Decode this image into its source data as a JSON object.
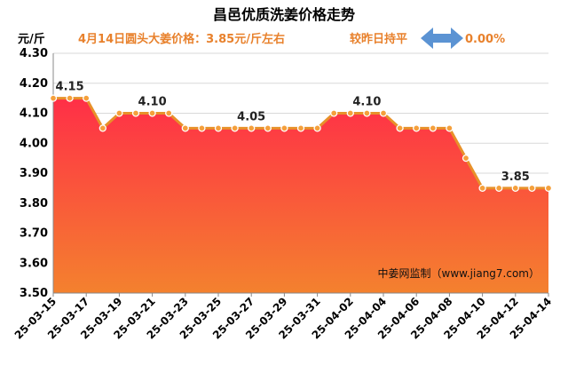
{
  "chart_data": {
    "type": "area",
    "title": "昌邑优质洗姜价格走势",
    "subtitle": "4月14日圆头大姜价格：3.85元/斤左右",
    "change_text": "较昨日持平",
    "change_pct": "0.00%",
    "ylabel": "元/斤",
    "ylim": [
      3.5,
      4.3
    ],
    "y_ticks": [
      "3.50",
      "3.60",
      "3.70",
      "3.80",
      "3.90",
      "4.00",
      "4.10",
      "4.20",
      "4.30"
    ],
    "x_tick_labels": [
      "25-03-15",
      "25-03-17",
      "25-03-19",
      "25-03-21",
      "25-03-23",
      "25-03-25",
      "25-03-27",
      "25-03-29",
      "25-03-31",
      "25-04-02",
      "25-04-04",
      "25-04-06",
      "25-04-08",
      "25-04-10",
      "25-04-12",
      "25-04-14"
    ],
    "x": [
      "25-03-15",
      "25-03-16",
      "25-03-17",
      "25-03-18",
      "25-03-19",
      "25-03-20",
      "25-03-21",
      "25-03-22",
      "25-03-23",
      "25-03-24",
      "25-03-25",
      "25-03-26",
      "25-03-27",
      "25-03-28",
      "25-03-29",
      "25-03-30",
      "25-03-31",
      "25-04-01",
      "25-04-02",
      "25-04-03",
      "25-04-04",
      "25-04-05",
      "25-04-06",
      "25-04-07",
      "25-04-08",
      "25-04-09",
      "25-04-10",
      "25-04-11",
      "25-04-12",
      "25-04-13",
      "25-04-14"
    ],
    "series": [
      {
        "values": [
          4.15,
          4.15,
          4.15,
          4.05,
          4.1,
          4.1,
          4.1,
          4.1,
          4.05,
          4.05,
          4.05,
          4.05,
          4.05,
          4.05,
          4.05,
          4.05,
          4.05,
          4.1,
          4.1,
          4.1,
          4.1,
          4.05,
          4.05,
          4.05,
          4.05,
          3.95,
          3.85,
          3.85,
          3.85,
          3.85,
          3.85
        ]
      }
    ],
    "data_labels": [
      {
        "index": 1,
        "text": "4.15"
      },
      {
        "index": 6,
        "text": "4.10"
      },
      {
        "index": 12,
        "text": "4.05"
      },
      {
        "index": 19,
        "text": "4.10"
      },
      {
        "index": 28,
        "text": "3.85"
      }
    ],
    "watermark": "中姜网监制（www.jiang7.com）",
    "colors": {
      "line": "#e8912a",
      "marker_fill": "#f5a03c",
      "area_top": "#ff2f47",
      "area_bottom": "#f4812e",
      "note_text": "#e8812c",
      "arrow": "#5b93d3",
      "grid": "#d9d9d9"
    },
    "grid": true,
    "legend": "none"
  }
}
